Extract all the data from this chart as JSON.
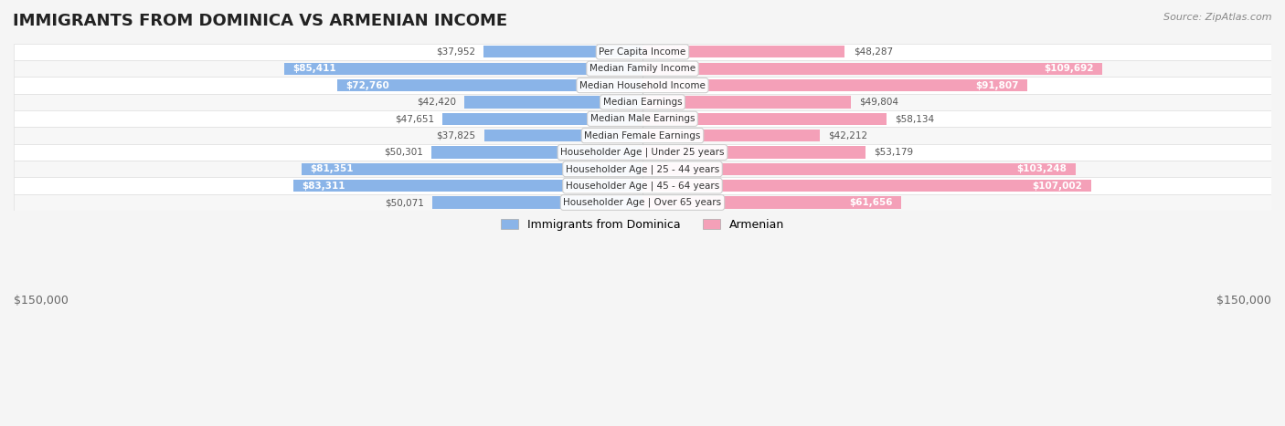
{
  "title": "IMMIGRANTS FROM DOMINICA VS ARMENIAN INCOME",
  "source": "Source: ZipAtlas.com",
  "categories": [
    "Per Capita Income",
    "Median Family Income",
    "Median Household Income",
    "Median Earnings",
    "Median Male Earnings",
    "Median Female Earnings",
    "Householder Age | Under 25 years",
    "Householder Age | 25 - 44 years",
    "Householder Age | 45 - 64 years",
    "Householder Age | Over 65 years"
  ],
  "dominica_values": [
    37952,
    85411,
    72760,
    42420,
    47651,
    37825,
    50301,
    81351,
    83311,
    50071
  ],
  "armenian_values": [
    48287,
    109692,
    91807,
    49804,
    58134,
    42212,
    53179,
    103248,
    107002,
    61656
  ],
  "dominica_labels": [
    "$37,952",
    "$85,411",
    "$72,760",
    "$42,420",
    "$47,651",
    "$37,825",
    "$50,301",
    "$81,351",
    "$83,311",
    "$50,071"
  ],
  "armenian_labels": [
    "$48,287",
    "$109,692",
    "$91,807",
    "$49,804",
    "$58,134",
    "$42,212",
    "$53,179",
    "$103,248",
    "$107,002",
    "$61,656"
  ],
  "dominica_color": "#8ab4e8",
  "armenian_color": "#f4a0b8",
  "dominica_color_dark": "#5a8fd4",
  "armenian_color_dark": "#e8648c",
  "max_value": 150000,
  "background_color": "#f5f5f5",
  "row_bg_color": "#f0f0f0",
  "legend_dominica": "Immigrants from Dominica",
  "legend_armenian": "Armenian",
  "xlabel_left": "$150,000",
  "xlabel_right": "$150,000"
}
